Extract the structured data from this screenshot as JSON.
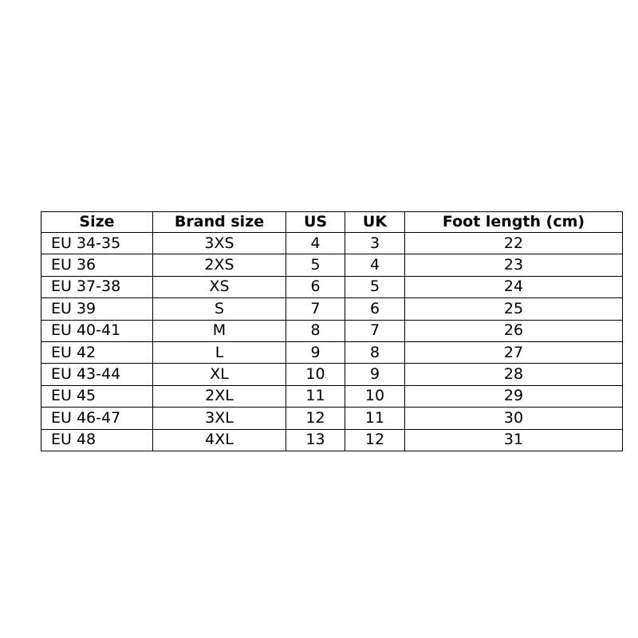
{
  "table": {
    "header": [
      "Size",
      "Brand size",
      "US",
      "UK",
      "Foot length (cm)"
    ],
    "rows": [
      [
        "EU 34-35",
        "3XS",
        4,
        3,
        22
      ],
      [
        "EU 36",
        "2XS",
        5,
        4,
        23
      ],
      [
        "EU 37-38",
        "XS",
        6,
        5,
        24
      ],
      [
        "EU 39",
        "S",
        7,
        6,
        25
      ],
      [
        "EU 40-41",
        "M",
        8,
        7,
        26
      ],
      [
        "EU 42",
        "L",
        9,
        8,
        27
      ],
      [
        "EU 43-44",
        "XL",
        10,
        9,
        28
      ],
      [
        "EU 45",
        "2XL",
        11,
        10,
        29
      ],
      [
        "EU 46-47",
        "3XL",
        12,
        11,
        30
      ],
      [
        "EU 48",
        "4XL",
        13,
        12,
        31
      ]
    ]
  }
}
